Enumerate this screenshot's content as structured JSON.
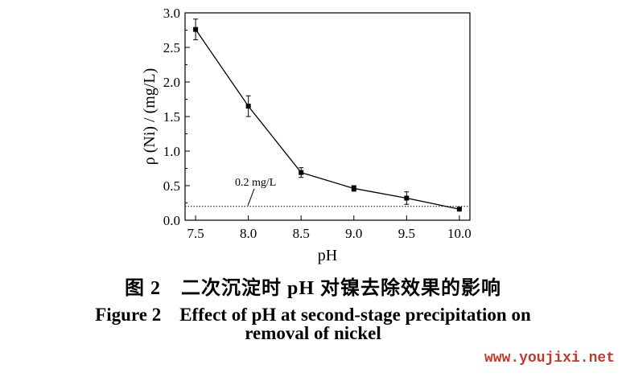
{
  "chart_data": {
    "type": "line",
    "xlabel": "pH",
    "ylabel": "ρ (Ni) / (mg/L)",
    "x": [
      7.5,
      8.0,
      8.5,
      9.0,
      9.5,
      10.0
    ],
    "x_ticks": [
      "7.5",
      "8.0",
      "8.5",
      "9.0",
      "9.5",
      "10.0"
    ],
    "y_ticks": [
      "0.0",
      "0.5",
      "1.0",
      "1.5",
      "2.0",
      "2.5",
      "3.0"
    ],
    "xlim": [
      7.4,
      10.1
    ],
    "ylim": [
      0,
      3.0
    ],
    "series": [
      {
        "values": [
          2.76,
          1.65,
          0.69,
          0.46,
          0.32,
          0.16
        ],
        "errors": [
          0.15,
          0.15,
          0.07,
          0.04,
          0.09,
          0.02
        ]
      }
    ],
    "reference_line": {
      "y": 0.2,
      "label": "0.2 mg/L"
    },
    "grid": false,
    "legend": "none"
  },
  "caption": {
    "zh": "图 2　二次沉淀时 pH 对镍去除效果的影响",
    "en_line1": "Figure 2　Effect of pH at second-stage precipitation on",
    "en_line2": "removal of nickel"
  },
  "watermark": "www.youjixi.net",
  "colors": {
    "ink": "#000000",
    "watermark": "#c0392b"
  }
}
